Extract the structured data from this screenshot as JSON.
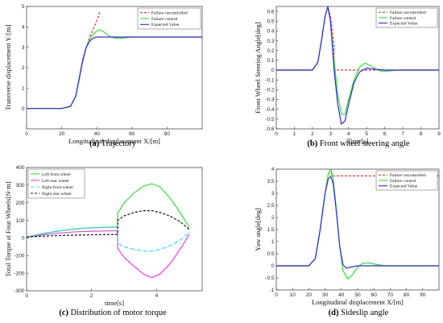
{
  "chart_data": [
    {
      "type": "line",
      "panel": "(a)",
      "caption_letter": "(a)",
      "caption_text": "Trajectory",
      "xlabel": "Longitudinal displacement X/[m]",
      "ylabel": "Transverse displacement Y/[m]",
      "xlim": [
        0,
        100
      ],
      "ylim": [
        -1,
        5
      ],
      "xticks": [
        0,
        20,
        40,
        60,
        80
      ],
      "yticks": [
        0,
        1,
        2,
        3,
        4,
        5
      ],
      "legend_position": "top-right",
      "series": [
        {
          "name": "Failure uncontrolled",
          "color": "#e8322b",
          "dash": true,
          "x": [
            0,
            20,
            25,
            28,
            30,
            32,
            34,
            36,
            38,
            40,
            42
          ],
          "y": [
            0,
            0,
            0.1,
            0.6,
            1.4,
            2.3,
            3.0,
            3.5,
            3.9,
            4.3,
            4.8
          ]
        },
        {
          "name": "Failure control",
          "color": "#2ee02e",
          "dash": false,
          "x": [
            0,
            20,
            25,
            28,
            30,
            32,
            34,
            36,
            38,
            40,
            42,
            44,
            47,
            50,
            55,
            60,
            70,
            80,
            100
          ],
          "y": [
            0,
            0,
            0.1,
            0.6,
            1.5,
            2.4,
            3.0,
            3.4,
            3.65,
            3.8,
            3.85,
            3.75,
            3.55,
            3.45,
            3.45,
            3.5,
            3.5,
            3.5,
            3.5
          ]
        },
        {
          "name": "Expected Value",
          "color": "#2a2ae0",
          "dash": false,
          "x": [
            0,
            20,
            25,
            28,
            30,
            32,
            34,
            36,
            38,
            40,
            42,
            45,
            50,
            60,
            80,
            100
          ],
          "y": [
            0,
            0,
            0.1,
            0.6,
            1.5,
            2.4,
            3.0,
            3.3,
            3.45,
            3.5,
            3.5,
            3.5,
            3.5,
            3.5,
            3.5,
            3.5
          ]
        }
      ]
    },
    {
      "type": "line",
      "panel": "(b)",
      "caption_letter": "(b)",
      "caption_text": "Front wheel steering angle",
      "xlabel": "Time[s]",
      "ylabel": "Front Wheel Steering Angle[deg]",
      "xlim": [
        0,
        9
      ],
      "ylim": [
        -0.6,
        0.65
      ],
      "xticks": [
        0,
        1,
        2,
        3,
        4,
        5,
        6,
        7,
        8,
        9
      ],
      "yticks": [
        -0.6,
        -0.5,
        -0.4,
        -0.3,
        -0.2,
        -0.1,
        0,
        0.1,
        0.2,
        0.3,
        0.4,
        0.5,
        0.6
      ],
      "legend_position": "top-right",
      "series": [
        {
          "name": "Failure uncontrolled",
          "color": "#e8322b",
          "dash": true,
          "x": [
            0,
            2.0,
            2.3,
            2.5,
            2.7,
            2.85,
            3.0,
            3.1,
            3.2,
            3.2,
            9
          ],
          "y": [
            0,
            0,
            0.08,
            0.3,
            0.55,
            0.65,
            0.55,
            0.4,
            0.25,
            0,
            0
          ]
        },
        {
          "name": "Failure control",
          "color": "#2ee02e",
          "dash": false,
          "x": [
            0,
            2.0,
            2.3,
            2.5,
            2.7,
            2.85,
            3.0,
            3.2,
            3.4,
            3.6,
            3.8,
            4.0,
            4.3,
            4.6,
            4.9,
            5.2,
            5.5,
            5.8,
            6.2,
            6.6,
            9
          ],
          "y": [
            0,
            0,
            0.08,
            0.3,
            0.55,
            0.65,
            0.5,
            0.1,
            -0.25,
            -0.45,
            -0.45,
            -0.3,
            -0.1,
            0.03,
            0.07,
            0.05,
            0.01,
            -0.01,
            -0.01,
            0,
            0
          ]
        },
        {
          "name": "Expected Value",
          "color": "#2a2ae0",
          "dash": false,
          "x": [
            0,
            2.0,
            2.3,
            2.5,
            2.7,
            2.85,
            3.0,
            3.2,
            3.4,
            3.6,
            3.8,
            4.0,
            4.3,
            4.6,
            5.0,
            5.4,
            6.0,
            9
          ],
          "y": [
            0,
            0,
            0.08,
            0.3,
            0.55,
            0.65,
            0.5,
            0.0,
            -0.35,
            -0.55,
            -0.52,
            -0.35,
            -0.13,
            -0.02,
            0.02,
            0.01,
            0,
            0
          ]
        }
      ]
    },
    {
      "type": "line",
      "panel": "(c)",
      "caption_letter": "(c)",
      "caption_text": "Distribution of motor torque",
      "xlabel": "time[s]",
      "ylabel": "Total Torque at Four Wheels[N·m]",
      "xlim": [
        0,
        5.4
      ],
      "ylim": [
        -300,
        400
      ],
      "xticks": [
        0,
        2,
        4
      ],
      "yticks": [
        -300,
        -200,
        -100,
        0,
        100,
        200,
        300,
        400
      ],
      "legend_position": "top-left",
      "series": [
        {
          "name": "Left front wheel",
          "color": "#2ee02e",
          "dash": false,
          "style": "solid",
          "x": [
            0,
            0.5,
            1.0,
            1.5,
            2.0,
            2.5,
            2.8,
            2.8,
            3.0,
            3.3,
            3.6,
            3.85,
            4.1,
            4.4,
            4.7,
            5.0
          ],
          "y": [
            5,
            25,
            40,
            52,
            58,
            60,
            62,
            140,
            200,
            255,
            295,
            308,
            290,
            230,
            150,
            60
          ]
        },
        {
          "name": "Left rear wheel",
          "color": "#ee3fee",
          "dash": false,
          "style": "solid",
          "x": [
            0,
            0.5,
            1.0,
            1.5,
            2.0,
            2.5,
            2.8,
            2.8,
            3.0,
            3.3,
            3.6,
            3.85,
            4.1,
            4.4,
            4.7,
            5.0
          ],
          "y": [
            5,
            18,
            28,
            35,
            38,
            40,
            42,
            -60,
            -110,
            -160,
            -205,
            -225,
            -205,
            -150,
            -70,
            20
          ]
        },
        {
          "name": "Right front wheel",
          "color": "#12d6f0",
          "dash": true,
          "style": "dashdot",
          "x": [
            0,
            0.5,
            1.0,
            1.5,
            2.0,
            2.5,
            2.8,
            2.8,
            3.0,
            3.3,
            3.6,
            3.85,
            4.1,
            4.4,
            4.7,
            5.0
          ],
          "y": [
            5,
            25,
            40,
            52,
            58,
            60,
            62,
            -30,
            -50,
            -65,
            -75,
            -75,
            -65,
            -45,
            -15,
            30
          ]
        },
        {
          "name": "Right rear wheel",
          "color": "#111111",
          "dash": true,
          "style": "dashed",
          "x": [
            0,
            0.5,
            1.0,
            1.5,
            2.0,
            2.5,
            2.8,
            2.8,
            3.0,
            3.3,
            3.6,
            3.85,
            4.1,
            4.4,
            4.7,
            5.0
          ],
          "y": [
            5,
            10,
            14,
            16,
            18,
            20,
            20,
            100,
            125,
            145,
            155,
            155,
            145,
            125,
            95,
            50
          ]
        }
      ]
    },
    {
      "type": "line",
      "panel": "(d)",
      "caption_letter": "(d)",
      "caption_text": "Sideslip angle",
      "xlabel": "Longitudinal displacement X/[m]",
      "ylabel": "Yaw angle[deg]",
      "xlim": [
        0,
        100
      ],
      "ylim": [
        -1.0,
        4.0
      ],
      "xticks": [
        0,
        10,
        20,
        30,
        40,
        50,
        60,
        70,
        80,
        90
      ],
      "yticks": [
        -1,
        -0.5,
        0,
        0.5,
        1,
        1.5,
        2,
        2.5,
        3,
        3.5,
        4
      ],
      "legend_position": "top-right",
      "series": [
        {
          "name": "Failure uncontrolled",
          "color": "#e8322b",
          "dash": true,
          "x": [
            0,
            20,
            24,
            27,
            30,
            32,
            33.5,
            34,
            100
          ],
          "y": [
            0,
            0,
            0.3,
            1.5,
            3.0,
            3.8,
            4.0,
            3.72,
            3.72
          ]
        },
        {
          "name": "Failure control",
          "color": "#2ee02e",
          "dash": false,
          "x": [
            0,
            20,
            24,
            27,
            30,
            32,
            33.5,
            35,
            37,
            39,
            41,
            44,
            47,
            50,
            53,
            57,
            62,
            67,
            75,
            100
          ],
          "y": [
            0,
            0,
            0.3,
            1.5,
            3.0,
            3.8,
            4.0,
            3.6,
            2.3,
            0.8,
            -0.2,
            -0.55,
            -0.35,
            -0.05,
            0.1,
            0.12,
            0.05,
            0.0,
            0,
            0
          ]
        },
        {
          "name": "Expected Value",
          "color": "#2a2ae0",
          "dash": false,
          "x": [
            0,
            20,
            24,
            27,
            30,
            32,
            33.5,
            35,
            37,
            39,
            41,
            43,
            46,
            50,
            60,
            100
          ],
          "y": [
            0,
            0,
            0.3,
            1.5,
            3.0,
            3.6,
            3.7,
            3.4,
            2.2,
            0.8,
            0.05,
            -0.1,
            -0.05,
            0,
            0,
            0
          ]
        }
      ]
    }
  ]
}
